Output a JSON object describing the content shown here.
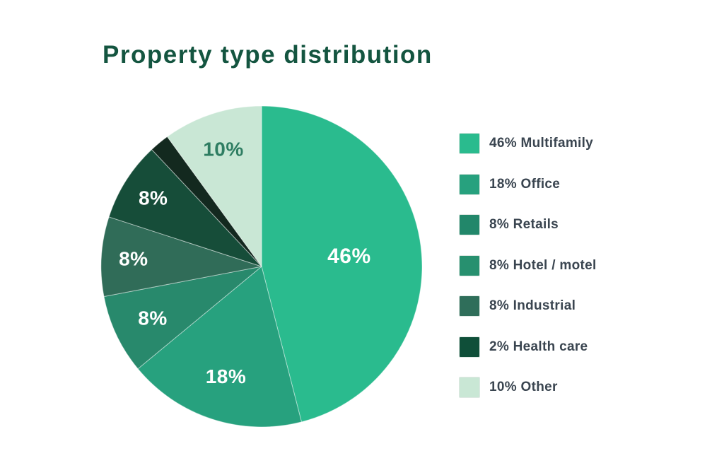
{
  "page": {
    "background": "#FFFFFF",
    "title_color": "#145540",
    "legend_text_color": "#3A4550"
  },
  "chart_data": {
    "type": "pie",
    "title": "Property type distribution",
    "direction": "clockwise",
    "start_angle_deg": 0,
    "legend_position": "right",
    "total_pct": 100,
    "slices": [
      {
        "name": "Multifamily",
        "value_pct": 46,
        "slice_label": "46%",
        "legend_label": "46% Multifamily",
        "pie_color": "#2ABB8E",
        "legend_color": "#2ABB8E",
        "slice_label_color": "#FFFFFF",
        "label_r": 0.55
      },
      {
        "name": "Office",
        "value_pct": 18,
        "slice_label": "18%",
        "legend_label": "18% Office",
        "pie_color": "#27A17E",
        "legend_color": "#27A17E",
        "slice_label_color": "#FFFFFF",
        "label_r": 0.72
      },
      {
        "name": "Retails",
        "value_pct": 8,
        "slice_label": "8%",
        "legend_label": "8% Retails",
        "pie_color": "#28896C",
        "legend_color": "#22876A",
        "slice_label_color": "#FFFFFF",
        "label_r": 0.75
      },
      {
        "name": "Hotel / motel",
        "value_pct": 8,
        "slice_label": "8%",
        "legend_label": "8% Hotel / motel",
        "pie_color": "#306C58",
        "legend_color": "#27906F",
        "slice_label_color": "#FFFFFF",
        "label_r": 0.8
      },
      {
        "name": "Industrial",
        "value_pct": 8,
        "slice_label": "8%",
        "legend_label": "8% Industrial",
        "pie_color": "#164D39",
        "legend_color": "#2F6E5A",
        "slice_label_color": "#FFFFFF",
        "label_r": 0.8
      },
      {
        "name": "Health care",
        "value_pct": 2,
        "slice_label": "",
        "legend_label": "2% Health care",
        "pie_color": "#13291F",
        "legend_color": "#0F4F39",
        "slice_label_color": "#FFFFFF",
        "label_r": 0
      },
      {
        "name": "Other",
        "value_pct": 10,
        "slice_label": "10%",
        "legend_label": "10% Other",
        "pie_color": "#C9E7D5",
        "legend_color": "#C9E7D5",
        "slice_label_color": "#2E7D62",
        "label_r": 0.77
      }
    ]
  }
}
